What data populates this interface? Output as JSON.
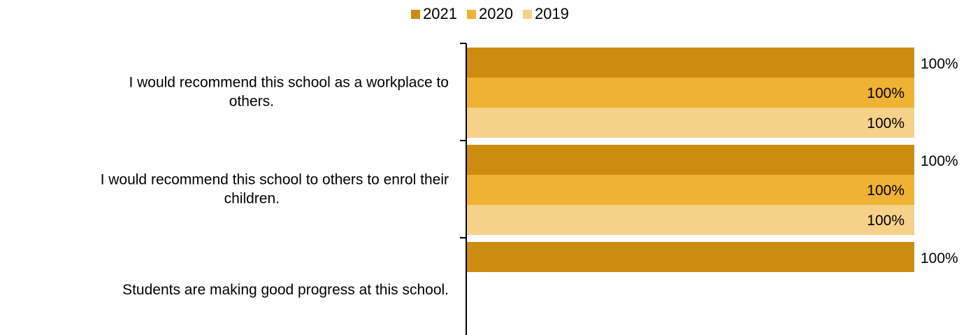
{
  "chart_data": {
    "type": "bar",
    "orientation": "horizontal",
    "title": "",
    "xlabel": "",
    "ylabel": "",
    "xlim": [
      0,
      100
    ],
    "grid": false,
    "legend_position": "top-center",
    "categories": [
      "I would recommend this school as a workplace to others.",
      "I would recommend this school to others to enrol their children.",
      "Students are making good progress at this school."
    ],
    "series": [
      {
        "name": "2021",
        "color": "#CC8C10",
        "values": [
          100,
          100,
          100
        ],
        "labels": [
          "100%",
          "100%",
          "100%"
        ]
      },
      {
        "name": "2020",
        "color": "#EFB233",
        "values": [
          100,
          100,
          null
        ],
        "labels": [
          "100%",
          "100%",
          ""
        ]
      },
      {
        "name": "2019",
        "color": "#F6D18A",
        "values": [
          100,
          100,
          null
        ],
        "labels": [
          "100%",
          "100%",
          ""
        ]
      }
    ]
  }
}
